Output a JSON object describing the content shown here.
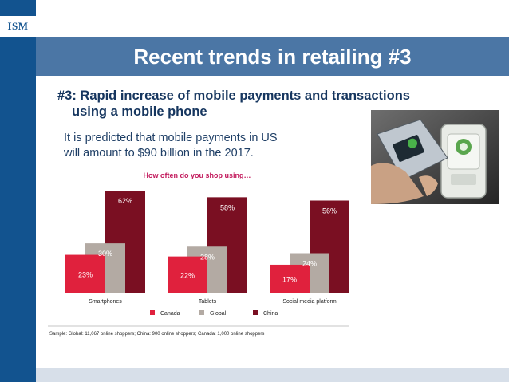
{
  "logo": {
    "text": "ISM"
  },
  "slide": {
    "title": "Recent trends in retailing #3",
    "subtitle_line1": "#3: Rapid increase of mobile payments and transactions",
    "subtitle_line2": "using a mobile phone",
    "body_line1": "It is predicted that mobile payments in US",
    "body_line2": "will amount to $90 billion in the 2017."
  },
  "colors": {
    "strip": "#12538f",
    "title_bar": "#4b76a5",
    "canada": "#e0213d",
    "global": "#b3aaa3",
    "china": "#7a0f22",
    "chart_title": "#c2185b"
  },
  "chart_data": {
    "type": "bar",
    "title": "How often do you shop using…",
    "categories": [
      "Smartphones",
      "Tablets",
      "Social media platform"
    ],
    "series": [
      {
        "name": "Canada",
        "values": [
          23,
          22,
          17
        ]
      },
      {
        "name": "Global",
        "values": [
          30,
          28,
          24
        ]
      },
      {
        "name": "China",
        "values": [
          62,
          58,
          56
        ]
      }
    ],
    "value_labels": [
      [
        "23%",
        "22%",
        "17%"
      ],
      [
        "30%",
        "28%",
        "24%"
      ],
      [
        "62%",
        "58%",
        "56%"
      ]
    ],
    "ylim": [
      0,
      64
    ],
    "grid": false,
    "legend_position": "bottom",
    "footnote": "Sample: Global: 11,067 online shoppers; China: 900 online shoppers; Canada: 1,000 online shoppers"
  }
}
